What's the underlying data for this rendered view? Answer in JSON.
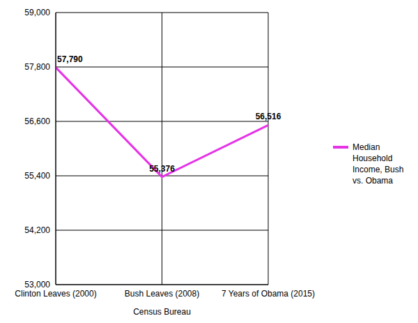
{
  "chart_data": {
    "type": "line",
    "x_label": "Census Bureau",
    "categories": [
      "Clinton Leaves (2000)",
      "Bush Leaves (2008)",
      "7 Years of Obama (2015)"
    ],
    "series": [
      {
        "name": "Median Household Income, Bush vs. Obama",
        "color": "#e633e6",
        "values": [
          57790,
          55376,
          56516
        ],
        "value_labels": [
          "57,790",
          "55,376",
          "56,516"
        ],
        "marker": "none"
      }
    ],
    "ylim": [
      53000,
      59000
    ],
    "yticks": [
      {
        "value": 53000,
        "label": "53,000"
      },
      {
        "value": 54200,
        "label": "54,200"
      },
      {
        "value": 55400,
        "label": "55,400"
      },
      {
        "value": 56600,
        "label": "56,600"
      },
      {
        "value": 57800,
        "label": "57,800"
      },
      {
        "value": 59000,
        "label": "59,000"
      }
    ],
    "grid": true,
    "legend": "right",
    "data_labels": true
  }
}
